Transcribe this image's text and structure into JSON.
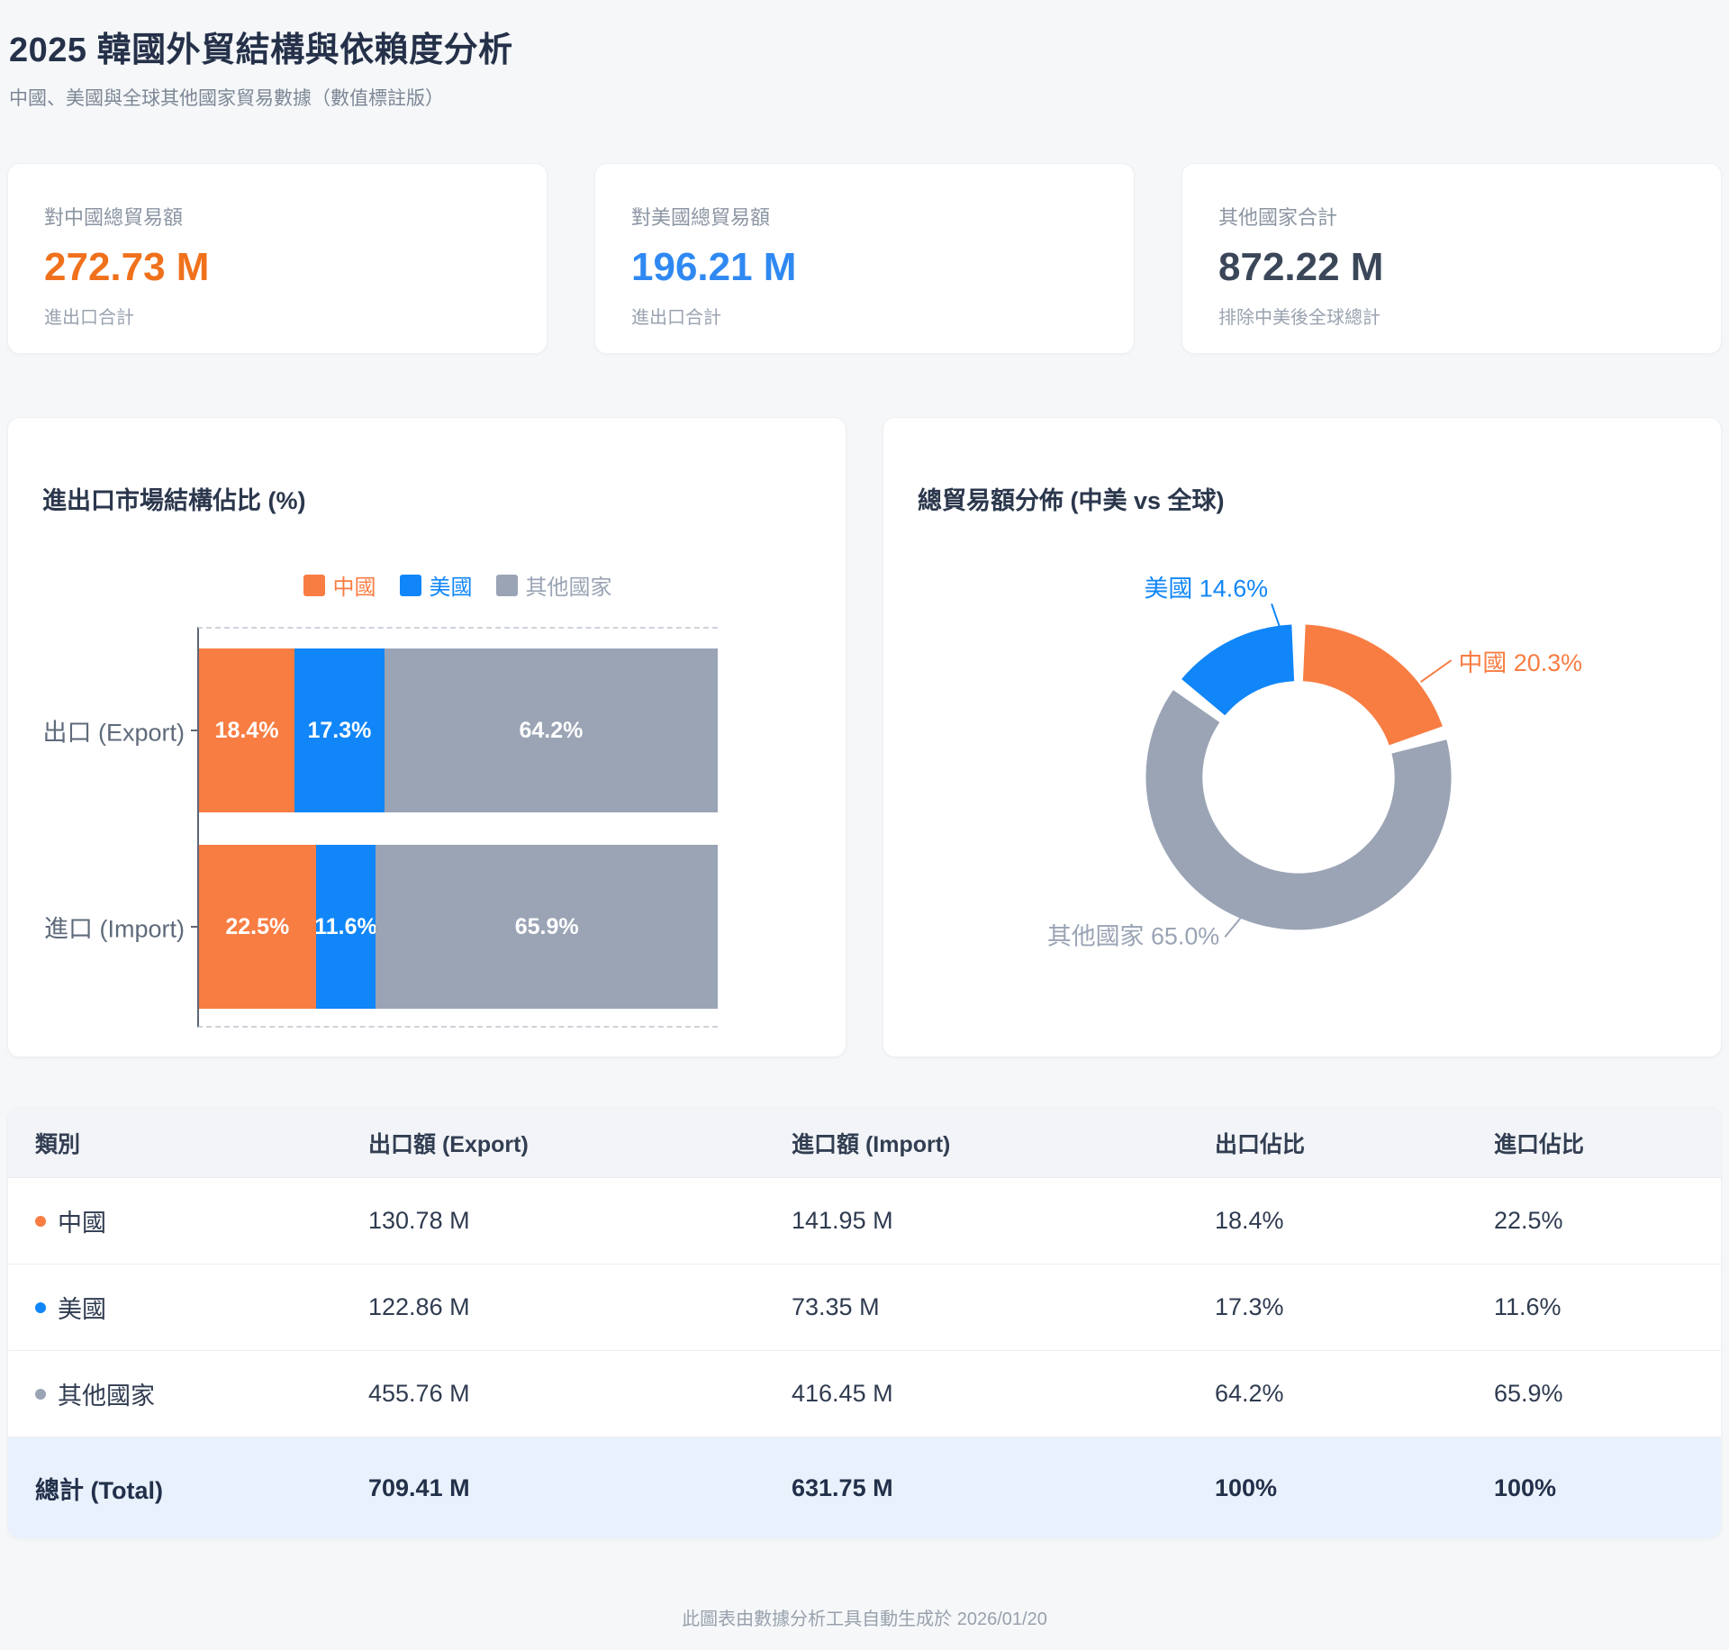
{
  "page": {
    "title": "2025 韓國外貿結構與依賴度分析",
    "subtitle": "中國、美國與全球其他國家貿易數據（數值標註版）",
    "footer": "此圖表由數據分析工具自動生成於 2026/01/20"
  },
  "colors": {
    "china": "#f87d43",
    "usa": "#1086f8",
    "others": "#9aa4b5",
    "china_stat": "#f0711c",
    "usa_stat": "#3089f2",
    "others_stat": "#3b4759"
  },
  "stat_cards": [
    {
      "label": "對中國總貿易額",
      "value": "272.73 M",
      "sub": "進出口合計",
      "color": "#f0711c"
    },
    {
      "label": "對美國總貿易額",
      "value": "196.21 M",
      "sub": "進出口合計",
      "color": "#3089f2"
    },
    {
      "label": "其他國家合計",
      "value": "872.22 M",
      "sub": "排除中美後全球總計",
      "color": "#3b4759"
    }
  ],
  "chart_data": [
    {
      "type": "bar",
      "variant": "horizontal-stacked-percent",
      "title": "進出口市場結構佔比 (%)",
      "categories": [
        "出口 (Export)",
        "進口 (Import)"
      ],
      "series": [
        {
          "name": "中國",
          "color": "#f87d43",
          "values": [
            18.4,
            22.5
          ]
        },
        {
          "name": "美國",
          "color": "#1086f8",
          "values": [
            17.3,
            11.6
          ]
        },
        {
          "name": "其他國家",
          "color": "#9aa4b5",
          "values": [
            64.2,
            65.9
          ]
        }
      ],
      "value_suffix": "%",
      "xlim": [
        0,
        100
      ],
      "legend_position": "top",
      "grid": false
    },
    {
      "type": "pie",
      "variant": "donut",
      "title": "總貿易額分佈 (中美 vs 全球)",
      "slices": [
        {
          "name": "中國",
          "value": 20.3,
          "color": "#f87d43"
        },
        {
          "name": "其他國家",
          "value": 65.0,
          "color": "#9aa4b5"
        },
        {
          "name": "美國",
          "value": 14.6,
          "color": "#1086f8"
        }
      ],
      "label_format": "{name} {value}%",
      "legend_position": "none"
    }
  ],
  "table": {
    "headers": [
      "類別",
      "出口額 (Export)",
      "進口額 (Import)",
      "出口佔比",
      "進口佔比"
    ],
    "rows": [
      {
        "dot": "#f87d43",
        "name": "中國",
        "export": "130.78 M",
        "import": "141.95 M",
        "export_share": "18.4%",
        "import_share": "22.5%"
      },
      {
        "dot": "#1086f8",
        "name": "美國",
        "export": "122.86 M",
        "import": "73.35 M",
        "export_share": "17.3%",
        "import_share": "11.6%"
      },
      {
        "dot": "#9aa4b5",
        "name": "其他國家",
        "export": "455.76 M",
        "import": "416.45 M",
        "export_share": "64.2%",
        "import_share": "65.9%"
      }
    ],
    "total": {
      "name": "總計 (Total)",
      "export": "709.41 M",
      "import": "631.75 M",
      "export_share": "100%",
      "import_share": "100%"
    }
  }
}
